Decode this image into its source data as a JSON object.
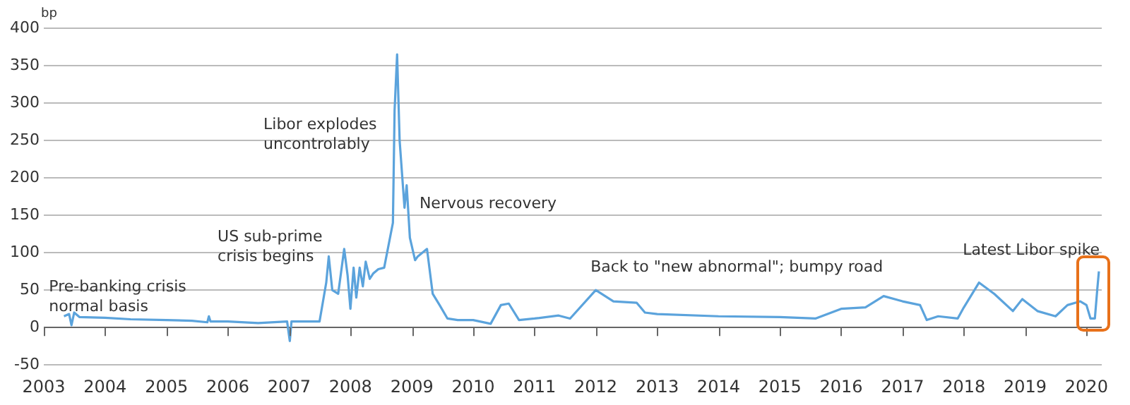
{
  "chart_data": {
    "type": "line",
    "ylabel": "bp",
    "xlim": [
      "2003-01-01",
      "2020-04-01"
    ],
    "ylim": [
      -50,
      400
    ],
    "xticks": [
      "2003",
      "2004",
      "2005",
      "2006",
      "2007",
      "2008",
      "2009",
      "2010",
      "2011",
      "2012",
      "2013",
      "2014",
      "2015",
      "2016",
      "2017",
      "2018",
      "2019",
      "2020"
    ],
    "yticks": [
      -50,
      0,
      50,
      100,
      150,
      200,
      250,
      300,
      350,
      400
    ],
    "grid": "y",
    "legend": false,
    "marker": "none",
    "line_style": "solid",
    "annotations": [
      "Pre-banking crisis\nnormal basis",
      "US sub-prime\ncrisis begins",
      "Libor explodes\nuncontrolably",
      "Nervous recovery",
      "Back to \"new abnormal\"; bumpy road",
      "Latest Libor spike"
    ],
    "series": [
      {
        "color": "#5ba3dc",
        "x": [
          "2003-05-01",
          "2003-06-01",
          "2003-06-15",
          "2003-07-01",
          "2003-08-01",
          "2004-01-01",
          "2004-06-01",
          "2005-01-01",
          "2005-06-01",
          "2005-09-01",
          "2005-09-10",
          "2005-09-20",
          "2006-01-01",
          "2006-07-01",
          "2006-12-20",
          "2007-01-05",
          "2007-01-15",
          "2007-07-01",
          "2007-08-10",
          "2007-08-25",
          "2007-09-15",
          "2007-10-20",
          "2007-11-25",
          "2007-12-15",
          "2008-01-01",
          "2008-01-20",
          "2008-02-05",
          "2008-02-25",
          "2008-03-15",
          "2008-04-01",
          "2008-04-25",
          "2008-05-15",
          "2008-06-15",
          "2008-07-20",
          "2008-09-10",
          "2008-09-20",
          "2008-10-05",
          "2008-10-20",
          "2008-11-18",
          "2008-12-01",
          "2008-12-20",
          "2009-01-20",
          "2009-02-05",
          "2009-04-01",
          "2009-05-05",
          "2009-06-15",
          "2009-08-01",
          "2009-10-01",
          "2010-01-01",
          "2010-04-15",
          "2010-06-15",
          "2010-08-01",
          "2010-10-01",
          "2011-01-01",
          "2011-05-25",
          "2011-08-01",
          "2012-01-01",
          "2012-04-15",
          "2012-09-01",
          "2012-10-20",
          "2013-01-01",
          "2014-01-01",
          "2015-01-01",
          "2015-08-01",
          "2016-01-01",
          "2016-05-25",
          "2016-09-10",
          "2017-01-01",
          "2017-04-15",
          "2017-05-25",
          "2017-08-01",
          "2017-11-25",
          "2018-01-01",
          "2018-04-01",
          "2018-07-01",
          "2018-10-20",
          "2018-12-15",
          "2019-03-15",
          "2019-07-01",
          "2019-09-10",
          "2019-11-25",
          "2020-01-01",
          "2020-01-25",
          "2020-02-20",
          "2020-03-05",
          "2020-03-15"
        ],
        "values": [
          15,
          18,
          3,
          20,
          14,
          13,
          11,
          10,
          9,
          7,
          15,
          8,
          8,
          6,
          8,
          -18,
          8,
          8,
          60,
          95,
          50,
          45,
          105,
          70,
          25,
          80,
          40,
          80,
          55,
          88,
          65,
          72,
          78,
          80,
          140,
          290,
          365,
          250,
          160,
          190,
          120,
          90,
          95,
          105,
          45,
          30,
          12,
          10,
          10,
          5,
          30,
          32,
          10,
          12,
          16,
          12,
          50,
          35,
          33,
          20,
          18,
          15,
          14,
          12,
          25,
          27,
          42,
          35,
          30,
          10,
          15,
          12,
          27,
          60,
          45,
          22,
          38,
          22,
          15,
          30,
          35,
          30,
          12,
          12,
          50,
          75
        ]
      }
    ]
  }
}
